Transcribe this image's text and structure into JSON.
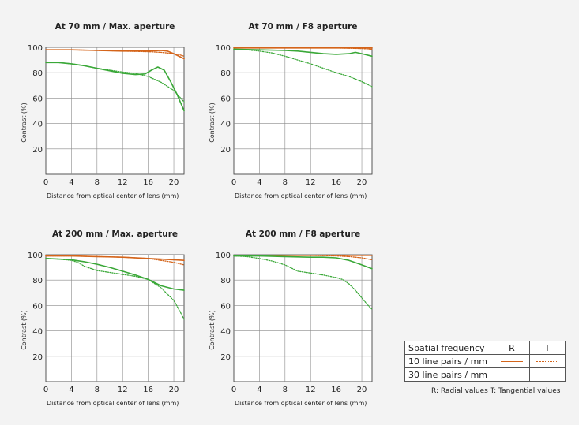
{
  "colors": {
    "freq10": "#d4641a",
    "freq30": "#3aa838"
  },
  "chart_data": [
    {
      "type": "line",
      "title": "At 70 mm / Max. aperture",
      "xlabel": "Distance from optical center of lens (mm)",
      "ylabel": "Contrast (%)",
      "xlim": [
        0,
        21.6
      ],
      "ylim": [
        0,
        100
      ],
      "xticks": [
        0,
        4,
        8,
        12,
        16,
        20
      ],
      "yticks": [
        20,
        40,
        60,
        80,
        100
      ],
      "series": [
        {
          "key": "r10",
          "x": [
            0,
            4,
            8,
            12,
            16,
            18,
            19,
            20,
            21.6
          ],
          "y": [
            98,
            98,
            97.5,
            97,
            97,
            97.5,
            97,
            95,
            91
          ]
        },
        {
          "key": "t10",
          "x": [
            0,
            4,
            8,
            12,
            16,
            18,
            20,
            21,
            21.6
          ],
          "y": [
            98,
            98,
            97.5,
            97,
            96.5,
            96,
            95,
            94,
            93
          ]
        },
        {
          "key": "r30",
          "x": [
            0,
            2,
            4,
            6,
            8,
            10,
            12,
            14,
            15.5,
            16.5,
            17.5,
            18.5,
            19.5,
            20.5,
            21.6
          ],
          "y": [
            88,
            88,
            87,
            85.5,
            83.5,
            81.5,
            79.5,
            78.5,
            79,
            82,
            84.5,
            82,
            73,
            63,
            50
          ]
        },
        {
          "key": "t30",
          "x": [
            0,
            2,
            4,
            6,
            8,
            10,
            12,
            14,
            16,
            18,
            20,
            21.6
          ],
          "y": [
            88,
            88,
            87,
            85.5,
            83.5,
            82,
            80.5,
            79.5,
            77,
            72.5,
            66,
            57
          ]
        }
      ]
    },
    {
      "type": "line",
      "title": "At 70 mm / F8 aperture",
      "xlabel": "Distance from optical center of lens (mm)",
      "ylabel": "Contrast (%)",
      "xlim": [
        0,
        21.6
      ],
      "ylim": [
        0,
        100
      ],
      "xticks": [
        0,
        4,
        8,
        12,
        16,
        20
      ],
      "yticks": [
        20,
        40,
        60,
        80,
        100
      ],
      "series": [
        {
          "key": "r10",
          "x": [
            0,
            4,
            8,
            12,
            16,
            20,
            21.6
          ],
          "y": [
            99.5,
            99.5,
            99.5,
            99.5,
            99.5,
            99.5,
            99.5
          ]
        },
        {
          "key": "t10",
          "x": [
            0,
            4,
            8,
            12,
            16,
            20,
            21.6
          ],
          "y": [
            99.5,
            99.5,
            99.5,
            99.5,
            99.5,
            99,
            98.5
          ]
        },
        {
          "key": "r30",
          "x": [
            0,
            4,
            8,
            10,
            12,
            14,
            16,
            18,
            19,
            20,
            21.6
          ],
          "y": [
            98.5,
            98,
            97.5,
            97,
            96,
            95,
            94.5,
            95,
            96,
            95,
            93
          ]
        },
        {
          "key": "t30",
          "x": [
            0,
            2,
            4,
            6,
            8,
            10,
            12,
            14,
            16,
            18,
            20,
            21.6
          ],
          "y": [
            98.5,
            98,
            97,
            95.5,
            93,
            90,
            87,
            83.5,
            80,
            77,
            73,
            69
          ]
        }
      ]
    },
    {
      "type": "line",
      "title": "At 200 mm / Max. aperture",
      "xlabel": "Distance from optical center of lens (mm)",
      "ylabel": "Contrast (%)",
      "xlim": [
        0,
        21.6
      ],
      "ylim": [
        0,
        100
      ],
      "xticks": [
        0,
        4,
        8,
        12,
        16,
        20
      ],
      "yticks": [
        20,
        40,
        60,
        80,
        100
      ],
      "series": [
        {
          "key": "r10",
          "x": [
            0,
            4,
            8,
            12,
            16,
            20,
            21.6
          ],
          "y": [
            99,
            99,
            98.5,
            98,
            97,
            96,
            95.5
          ]
        },
        {
          "key": "t10",
          "x": [
            0,
            4,
            8,
            12,
            16,
            20,
            21.6
          ],
          "y": [
            99,
            99,
            98.5,
            98,
            97,
            94,
            92
          ]
        },
        {
          "key": "r30",
          "x": [
            0,
            2,
            4,
            6,
            8,
            10,
            12,
            14,
            16,
            17,
            18,
            20,
            21.6
          ],
          "y": [
            97,
            96.5,
            96,
            94.5,
            92.5,
            90,
            87,
            84,
            80.5,
            78,
            75.5,
            73,
            72
          ]
        },
        {
          "key": "t30",
          "x": [
            0,
            2,
            4,
            5,
            6,
            8,
            10,
            12,
            14,
            16,
            18,
            20,
            21,
            21.6
          ],
          "y": [
            97,
            96.5,
            95.5,
            94,
            91,
            87.5,
            86,
            84.5,
            83,
            80.5,
            74,
            64,
            55,
            49
          ]
        }
      ]
    },
    {
      "type": "line",
      "title": "At 200 mm / F8 aperture",
      "xlabel": "Distance from optical center of lens (mm)",
      "ylabel": "Contrast (%)",
      "xlim": [
        0,
        21.6
      ],
      "ylim": [
        0,
        100
      ],
      "xticks": [
        0,
        4,
        8,
        12,
        16,
        20
      ],
      "yticks": [
        20,
        40,
        60,
        80,
        100
      ],
      "series": [
        {
          "key": "r10",
          "x": [
            0,
            4,
            8,
            12,
            16,
            20,
            21.6
          ],
          "y": [
            99.5,
            99.5,
            99.5,
            99.5,
            99.5,
            99.5,
            99.5
          ]
        },
        {
          "key": "t10",
          "x": [
            0,
            4,
            8,
            12,
            16,
            18,
            20,
            21.6
          ],
          "y": [
            99.5,
            99.5,
            99.5,
            99.5,
            99,
            98.5,
            97.5,
            96
          ]
        },
        {
          "key": "r30",
          "x": [
            0,
            4,
            8,
            12,
            14,
            16,
            18,
            20,
            21.6
          ],
          "y": [
            99,
            99,
            98.5,
            98,
            98,
            97.5,
            95.5,
            92,
            89
          ]
        },
        {
          "key": "t30",
          "x": [
            0,
            2,
            4,
            6,
            8,
            9,
            10,
            12,
            14,
            16,
            17,
            18,
            19,
            20,
            21,
            21.6
          ],
          "y": [
            99,
            98.5,
            97,
            95,
            92,
            89.5,
            87,
            85.5,
            84,
            82,
            80.5,
            77,
            72,
            66,
            60,
            57
          ]
        }
      ]
    }
  ],
  "legend": {
    "header": "Spatial frequency",
    "col_r": "R",
    "col_t": "T",
    "row10": "10 line pairs / mm",
    "row30": "30 line pairs / mm",
    "note": "R: Radial values  T: Tangential values"
  }
}
